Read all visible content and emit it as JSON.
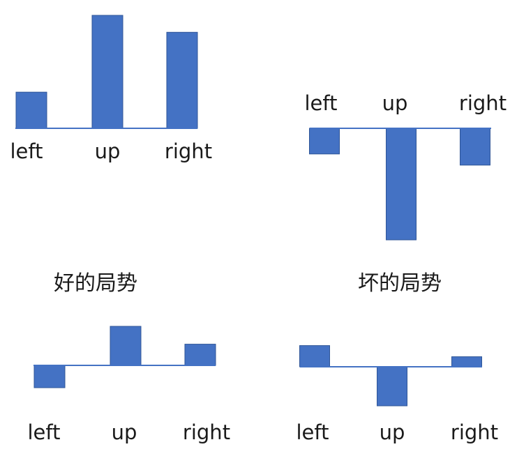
{
  "captions": {
    "good": "好的局势",
    "bad": "坏的局势"
  },
  "colors": {
    "bar": "#4472c4",
    "bar_edge": "#2f5597",
    "baseline": "#4472c4"
  },
  "chart_data": [
    {
      "type": "bar",
      "categories": [
        "left",
        "up",
        "right"
      ],
      "values": [
        0.32,
        1.0,
        0.85
      ],
      "ylim": [
        -1,
        1
      ]
    },
    {
      "type": "bar",
      "categories": [
        "left",
        "up",
        "right"
      ],
      "values": [
        -0.23,
        -1.0,
        -0.33
      ],
      "ylim": [
        -1,
        1
      ]
    },
    {
      "type": "bar",
      "categories": [
        "left",
        "up",
        "right"
      ],
      "values": [
        -0.2,
        0.35,
        0.19
      ],
      "ylim": [
        -1,
        1
      ]
    },
    {
      "type": "bar",
      "categories": [
        "left",
        "up",
        "right"
      ],
      "values": [
        0.19,
        -0.35,
        0.09
      ],
      "ylim": [
        -1,
        1
      ]
    }
  ]
}
